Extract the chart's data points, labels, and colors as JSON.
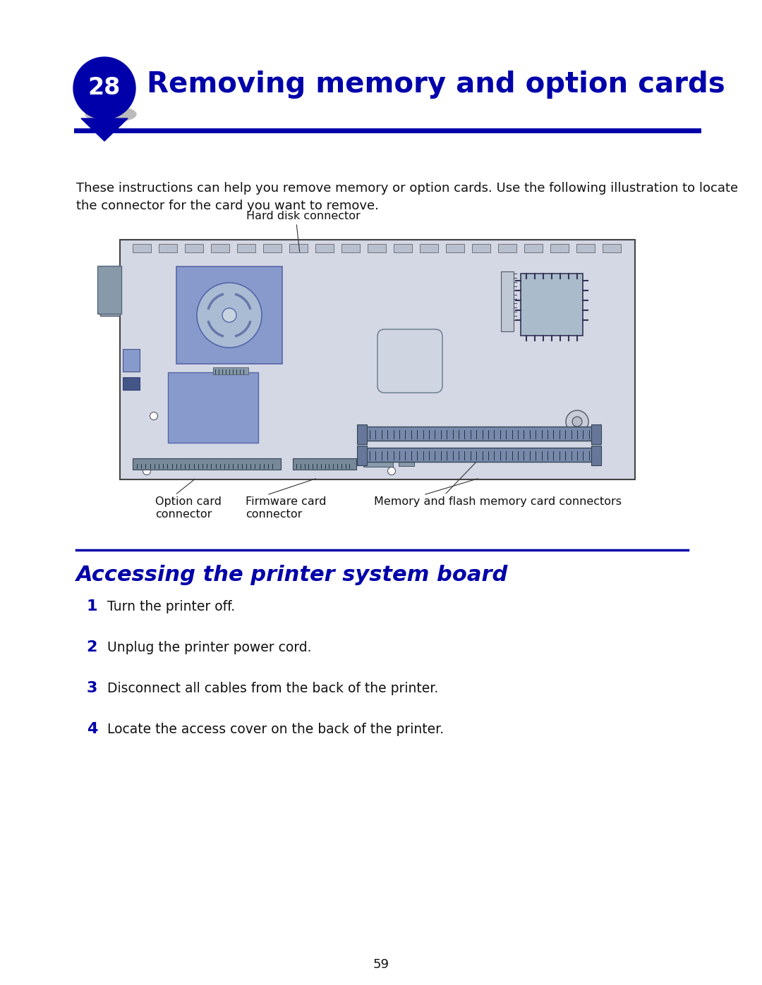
{
  "bg_color": "#ffffff",
  "dark_blue": "#0000AA",
  "title_text": "Removing memory and option cards",
  "chapter_num": "28",
  "body_text_1": "These instructions can help you remove memory or option cards. Use the following illustration to locate",
  "body_text_2": "the connector for the card you want to remove.",
  "hard_disk_label": "Hard disk connector",
  "option_card_label": "Option card\nconnector",
  "firmware_card_label": "Firmware card\nconnector",
  "memory_card_label": "Memory and flash memory card connectors",
  "section_title": "Accessing the printer system board",
  "steps": [
    "Turn the printer off.",
    "Unplug the printer power cord.",
    "Disconnect all cables from the back of the printer.",
    "Locate the access cover on the back of the printer."
  ],
  "page_num": "59",
  "board_color": "#d4d8e4",
  "blue_comp": "#8899cc",
  "blue_comp2": "#99aadd"
}
